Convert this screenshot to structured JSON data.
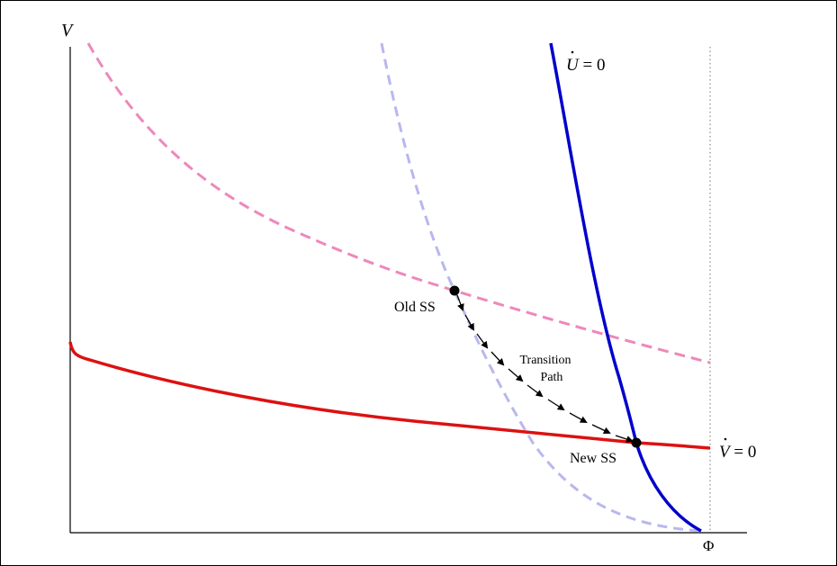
{
  "diagram": {
    "axes": {
      "y_label": "V",
      "x_label": "Φ"
    },
    "curves": {
      "u_dot_zero": {
        "label_var": "U",
        "label_rest": "= 0",
        "color": "#0000cc"
      },
      "v_dot_zero": {
        "label_var": "V",
        "label_rest": "= 0",
        "color": "#dd1111"
      },
      "old_u_curve": {
        "color": "#b8b8ee"
      },
      "old_v_curve": {
        "color": "#ee88bb"
      }
    },
    "points": {
      "old_ss": "Old SS",
      "new_ss": "New SS"
    },
    "transition_path": {
      "line1": "Transition",
      "line2": "Path"
    }
  }
}
